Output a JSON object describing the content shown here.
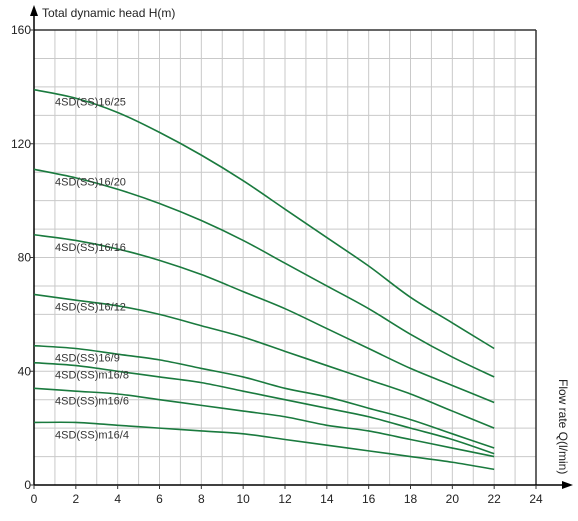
{
  "chart_data": {
    "type": "line",
    "ylabel": "Total dynamic head H(m)",
    "xlabel": "Flow rate Q(l/min)",
    "xlim": [
      0,
      24
    ],
    "ylim": [
      0,
      160
    ],
    "x_ticks": [
      "0",
      "2",
      "4",
      "6",
      "8",
      "10",
      "12",
      "14",
      "16",
      "18",
      "20",
      "22",
      "24"
    ],
    "y_ticks": [
      "0",
      "40",
      "80",
      "120",
      "160"
    ],
    "grid": true,
    "x": [
      0,
      2,
      4,
      6,
      8,
      10,
      12,
      14,
      16,
      18,
      20,
      22
    ],
    "series": [
      {
        "name": "4SD(SS)16/25",
        "values": [
          139,
          136,
          131,
          124,
          116,
          107,
          97,
          87,
          77,
          66,
          57,
          48
        ]
      },
      {
        "name": "4SD(SS)16/20",
        "values": [
          111,
          108,
          104,
          99,
          93,
          86,
          78,
          70,
          62,
          53,
          45,
          38
        ]
      },
      {
        "name": "4SD(SS)16/16",
        "values": [
          88,
          86,
          83,
          79,
          74,
          68,
          62,
          55,
          48,
          41,
          35,
          29
        ]
      },
      {
        "name": "4SD(SS)16/12",
        "values": [
          67,
          65,
          63,
          60,
          56,
          52,
          47,
          42,
          37,
          32,
          26,
          20
        ]
      },
      {
        "name": "4SD(SS)16/9",
        "values": [
          49,
          48,
          46,
          44,
          41,
          38,
          34,
          31,
          27,
          23,
          18,
          13
        ]
      },
      {
        "name": "4SD(SS)m16/8",
        "values": [
          43,
          42,
          40,
          38,
          36,
          33,
          30,
          27,
          24,
          20,
          16,
          11
        ]
      },
      {
        "name": "4SD(SS)m16/6",
        "values": [
          34,
          33,
          32,
          30,
          28,
          26,
          24,
          21,
          19,
          16,
          13,
          10
        ]
      },
      {
        "name": "4SD(SS)m16/4",
        "values": [
          22,
          22,
          21,
          20,
          19,
          18,
          16,
          14,
          12,
          10,
          8,
          5.5
        ]
      }
    ],
    "colors": {
      "curve": "#1a7a3e",
      "grid": "#c9c9c9",
      "axis": "#333333",
      "arrow": "#000000"
    }
  }
}
